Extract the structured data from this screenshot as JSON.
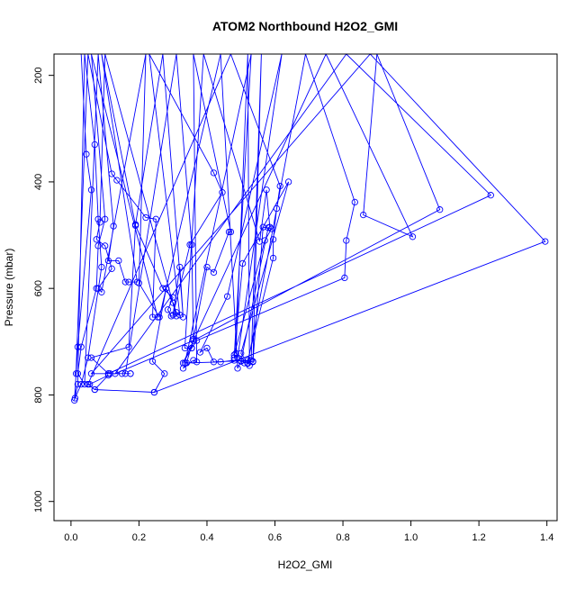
{
  "chart_data": {
    "type": "line",
    "title": "ATOM2 Northbound H2O2_GMI",
    "xlabel": "H2O2_GMI",
    "ylabel": "Pressure (mbar)",
    "xlim": [
      0.0,
      1.5
    ],
    "ylim": [
      1000,
      160
    ],
    "y_reversed": true,
    "grid": false,
    "x_ticks": [
      0.0,
      0.2,
      0.4,
      0.6,
      0.8,
      1.0,
      1.2,
      1.4
    ],
    "x_tick_labels": [
      "0.0",
      "0.2",
      "0.4",
      "0.6",
      "0.8",
      "1.0",
      "1.2",
      "1.4"
    ],
    "y_ticks": [
      200,
      400,
      600,
      800,
      1000
    ],
    "y_tick_labels": [
      "200",
      "400",
      "600",
      "800",
      "1000"
    ],
    "series": [
      {
        "color": "#0000ff",
        "points": [
          [
            0.03,
            160
          ],
          [
            0.045,
            348
          ],
          [
            0.06,
            415
          ],
          [
            0.02,
            710
          ],
          [
            0.015,
            760
          ],
          [
            0.01,
            810
          ],
          [
            0.02,
            780
          ],
          [
            0.04,
            160
          ],
          [
            0.07,
            330
          ],
          [
            0.08,
            470
          ],
          [
            0.09,
            560
          ],
          [
            0.05,
            730
          ],
          [
            0.03,
            780
          ],
          [
            0.012,
            806
          ],
          [
            0.05,
            160
          ],
          [
            0.12,
            385
          ],
          [
            0.135,
            397
          ],
          [
            0.22,
            467
          ],
          [
            0.25,
            470
          ],
          [
            0.24,
            654
          ],
          [
            0.255,
            654
          ],
          [
            0.06,
            160
          ],
          [
            0.1,
            470
          ],
          [
            0.08,
            520
          ],
          [
            0.075,
            600
          ],
          [
            0.03,
            710
          ],
          [
            0.02,
            760
          ],
          [
            0.04,
            780
          ],
          [
            0.08,
            160
          ],
          [
            0.125,
            483
          ],
          [
            0.11,
            548
          ],
          [
            0.14,
            548
          ],
          [
            0.16,
            588
          ],
          [
            0.17,
            588
          ],
          [
            0.195,
            588
          ],
          [
            0.09,
            160
          ],
          [
            0.19,
            482
          ],
          [
            0.27,
            600
          ],
          [
            0.3,
            617
          ],
          [
            0.285,
            640
          ],
          [
            0.295,
            652
          ],
          [
            0.31,
            652
          ],
          [
            0.1,
            160
          ],
          [
            0.085,
            476
          ],
          [
            0.075,
            508
          ],
          [
            0.1,
            520
          ],
          [
            0.12,
            563
          ],
          [
            0.08,
            600
          ],
          [
            0.09,
            607
          ],
          [
            0.22,
            160
          ],
          [
            0.2,
            590
          ],
          [
            0.26,
            654
          ],
          [
            0.28,
            600
          ],
          [
            0.3,
            627
          ],
          [
            0.31,
            645
          ],
          [
            0.32,
            650
          ],
          [
            0.23,
            160
          ],
          [
            0.42,
            383
          ],
          [
            0.445,
            420
          ],
          [
            0.35,
            518
          ],
          [
            0.3,
            650
          ],
          [
            0.32,
            560
          ],
          [
            0.33,
            654
          ],
          [
            0.27,
            160
          ],
          [
            0.19,
            480
          ],
          [
            0.17,
            710
          ],
          [
            0.06,
            730
          ],
          [
            0.11,
            760
          ],
          [
            0.175,
            760
          ],
          [
            0.16,
            760
          ],
          [
            0.31,
            160
          ],
          [
            0.355,
            518
          ],
          [
            0.36,
            695
          ],
          [
            0.34,
            740
          ],
          [
            0.33,
            750
          ],
          [
            0.36,
            735
          ],
          [
            0.37,
            738
          ],
          [
            0.36,
            160
          ],
          [
            0.47,
            494
          ],
          [
            0.465,
            494
          ],
          [
            0.42,
            570
          ],
          [
            0.4,
            560
          ],
          [
            0.355,
            712
          ],
          [
            0.335,
            712
          ],
          [
            0.39,
            160
          ],
          [
            0.555,
            512
          ],
          [
            0.575,
            415
          ],
          [
            0.585,
            485
          ],
          [
            0.58,
            486
          ],
          [
            0.5,
            737
          ],
          [
            0.49,
            750
          ],
          [
            0.44,
            160
          ],
          [
            0.28,
            600
          ],
          [
            0.24,
            737
          ],
          [
            0.275,
            760
          ],
          [
            0.245,
            795
          ],
          [
            0.07,
            790
          ],
          [
            0.05,
            780
          ],
          [
            0.47,
            160
          ],
          [
            0.615,
            408
          ],
          [
            0.605,
            450
          ],
          [
            0.595,
            508
          ],
          [
            0.595,
            543
          ],
          [
            0.52,
            735
          ],
          [
            0.525,
            745
          ],
          [
            0.52,
            160
          ],
          [
            0.485,
            722
          ],
          [
            0.51,
            740
          ],
          [
            0.535,
            737
          ],
          [
            0.48,
            735
          ],
          [
            0.44,
            738
          ],
          [
            0.335,
            740
          ],
          [
            0.53,
            160
          ],
          [
            0.48,
            730
          ],
          [
            0.505,
            553
          ],
          [
            0.64,
            400
          ],
          [
            0.5,
            722
          ],
          [
            0.52,
            740
          ],
          [
            0.53,
            735
          ],
          [
            0.56,
            160
          ],
          [
            0.535,
            738
          ],
          [
            0.565,
            485
          ],
          [
            0.59,
            488
          ],
          [
            0.57,
            510
          ],
          [
            0.48,
            725
          ],
          [
            0.49,
            730
          ],
          [
            0.62,
            160
          ],
          [
            0.46,
            615
          ],
          [
            0.38,
            720
          ],
          [
            0.4,
            712
          ],
          [
            0.42,
            738
          ],
          [
            0.5,
            736
          ],
          [
            0.52,
            741
          ],
          [
            0.69,
            160
          ],
          [
            0.835,
            438
          ],
          [
            0.81,
            510
          ],
          [
            0.805,
            580
          ],
          [
            0.37,
            698
          ],
          [
            0.355,
            712
          ],
          [
            0.33,
            740
          ],
          [
            0.75,
            160
          ],
          [
            1.005,
            503
          ],
          [
            0.86,
            462
          ],
          [
            0.9,
            160
          ],
          [
            1.085,
            452
          ],
          [
            0.36,
            698
          ],
          [
            0.13,
            760
          ],
          [
            0.81,
            160
          ],
          [
            1.235,
            425
          ],
          [
            0.11,
            760
          ],
          [
            0.15,
            760
          ],
          [
            0.175,
            760
          ],
          [
            0.115,
            760
          ],
          [
            0.06,
            760
          ],
          [
            0.88,
            160
          ],
          [
            1.395,
            512
          ],
          [
            0.245,
            795
          ],
          [
            0.07,
            790
          ],
          [
            0.11,
            763
          ],
          [
            0.055,
            780
          ],
          [
            0.05,
            780
          ]
        ],
        "marker": "open-circle"
      }
    ]
  }
}
